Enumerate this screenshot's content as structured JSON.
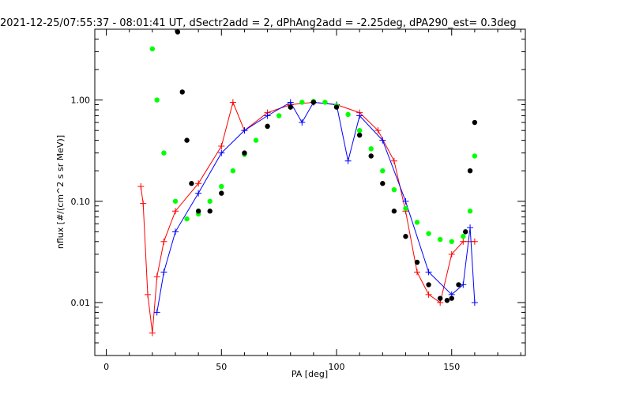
{
  "chart_data": {
    "type": "scatter",
    "title": "2021-12-25/07:55:37 - 08:01:41 UT, dSectr2add = 2, dPhAng2add = -2.25deg, dPA290_est=   0.3deg",
    "xlabel": "PA [deg]",
    "ylabel": "nflux [#/(cm^2 s sr MeV)]",
    "xlim": [
      -5,
      182
    ],
    "ylim": [
      0.003,
      5
    ],
    "y_scale": "log",
    "x_ticks": [
      0,
      50,
      100,
      150
    ],
    "x_tick_labels": [
      "0",
      "50",
      "100",
      "150"
    ],
    "y_ticks": [
      0.01,
      0.1,
      1.0
    ],
    "y_tick_labels": [
      "0.01",
      "0.10",
      "1.00"
    ],
    "grid": false,
    "colors": {
      "red": "#ff0000",
      "blue": "#0000ff",
      "green": "#00ff00",
      "black": "#000000"
    },
    "series": [
      {
        "color": "#ff0000",
        "style": "lines+plus",
        "points": [
          [
            15,
            0.14
          ],
          [
            16,
            0.095
          ],
          [
            18,
            0.012
          ],
          [
            20,
            0.005
          ],
          [
            22,
            0.018
          ],
          [
            25,
            0.04
          ],
          [
            30,
            0.08
          ],
          [
            40,
            0.15
          ],
          [
            50,
            0.35
          ],
          [
            55,
            0.95
          ],
          [
            60,
            0.5
          ],
          [
            70,
            0.75
          ],
          [
            80,
            0.9
          ],
          [
            90,
            0.95
          ],
          [
            100,
            0.9
          ],
          [
            110,
            0.75
          ],
          [
            118,
            0.5
          ],
          [
            125,
            0.25
          ],
          [
            130,
            0.08
          ],
          [
            135,
            0.02
          ],
          [
            140,
            0.012
          ],
          [
            145,
            0.01
          ],
          [
            150,
            0.03
          ],
          [
            155,
            0.04
          ],
          [
            160,
            0.04
          ]
        ]
      },
      {
        "color": "#0000ff",
        "style": "lines+plus",
        "points": [
          [
            22,
            0.008
          ],
          [
            25,
            0.02
          ],
          [
            30,
            0.05
          ],
          [
            40,
            0.12
          ],
          [
            50,
            0.3
          ],
          [
            60,
            0.5
          ],
          [
            70,
            0.7
          ],
          [
            80,
            0.95
          ],
          [
            85,
            0.6
          ],
          [
            90,
            0.95
          ],
          [
            100,
            0.9
          ],
          [
            105,
            0.25
          ],
          [
            110,
            0.7
          ],
          [
            120,
            0.4
          ],
          [
            130,
            0.1
          ],
          [
            140,
            0.02
          ],
          [
            150,
            0.012
          ],
          [
            155,
            0.015
          ],
          [
            158,
            0.055
          ],
          [
            160,
            0.01
          ]
        ]
      },
      {
        "color": "#00ff00",
        "style": "dots",
        "points": [
          [
            20,
            3.2
          ],
          [
            22,
            1.0
          ],
          [
            25,
            0.3
          ],
          [
            30,
            0.1
          ],
          [
            35,
            0.067
          ],
          [
            40,
            0.075
          ],
          [
            45,
            0.1
          ],
          [
            50,
            0.14
          ],
          [
            55,
            0.2
          ],
          [
            60,
            0.29
          ],
          [
            65,
            0.4
          ],
          [
            70,
            0.55
          ],
          [
            75,
            0.7
          ],
          [
            80,
            0.85
          ],
          [
            85,
            0.95
          ],
          [
            90,
            0.97
          ],
          [
            95,
            0.95
          ],
          [
            100,
            0.88
          ],
          [
            105,
            0.72
          ],
          [
            110,
            0.5
          ],
          [
            115,
            0.33
          ],
          [
            120,
            0.2
          ],
          [
            125,
            0.13
          ],
          [
            130,
            0.085
          ],
          [
            135,
            0.062
          ],
          [
            140,
            0.048
          ],
          [
            145,
            0.042
          ],
          [
            150,
            0.04
          ],
          [
            155,
            0.045
          ],
          [
            158,
            0.08
          ],
          [
            160,
            0.28
          ]
        ]
      },
      {
        "color": "#000000",
        "style": "dots",
        "points": [
          [
            31,
            4.7
          ],
          [
            33,
            1.2
          ],
          [
            35,
            0.4
          ],
          [
            37,
            0.15
          ],
          [
            40,
            0.08
          ],
          [
            45,
            0.08
          ],
          [
            50,
            0.12
          ],
          [
            60,
            0.3
          ],
          [
            70,
            0.55
          ],
          [
            80,
            0.85
          ],
          [
            90,
            0.95
          ],
          [
            100,
            0.85
          ],
          [
            110,
            0.45
          ],
          [
            115,
            0.28
          ],
          [
            120,
            0.15
          ],
          [
            125,
            0.08
          ],
          [
            130,
            0.045
          ],
          [
            135,
            0.025
          ],
          [
            140,
            0.015
          ],
          [
            145,
            0.011
          ],
          [
            148,
            0.0105
          ],
          [
            150,
            0.011
          ],
          [
            153,
            0.015
          ],
          [
            156,
            0.05
          ],
          [
            158,
            0.2
          ],
          [
            160,
            0.6
          ]
        ]
      }
    ]
  }
}
